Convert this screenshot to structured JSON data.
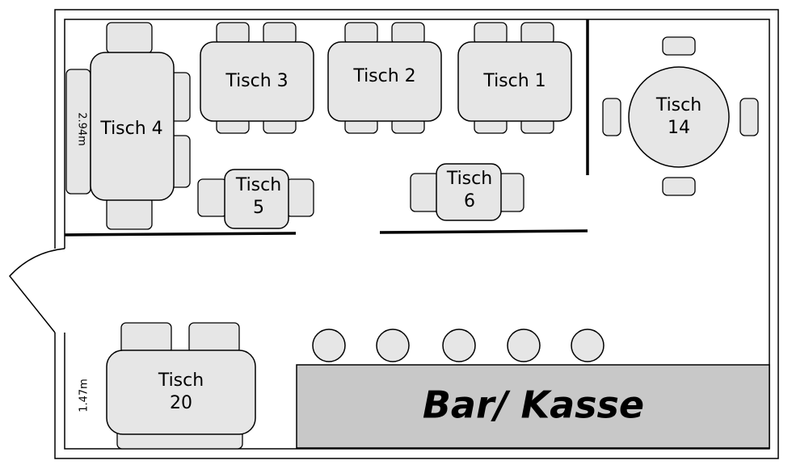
{
  "tables": [
    {
      "lines": [
        "Tisch 1"
      ]
    },
    {
      "lines": [
        "Tisch 2"
      ]
    },
    {
      "lines": [
        "Tisch 3"
      ]
    },
    {
      "lines": [
        "Tisch 4"
      ]
    },
    {
      "lines": [
        "Tisch",
        "5"
      ]
    },
    {
      "lines": [
        "Tisch",
        "6"
      ]
    },
    {
      "lines": [
        "Tisch",
        "14"
      ]
    },
    {
      "lines": [
        "Tisch",
        "20"
      ]
    }
  ],
  "bar": {
    "label": "Bar/ Kasse"
  },
  "dimensions": [
    "2.94m",
    "1.47m"
  ]
}
